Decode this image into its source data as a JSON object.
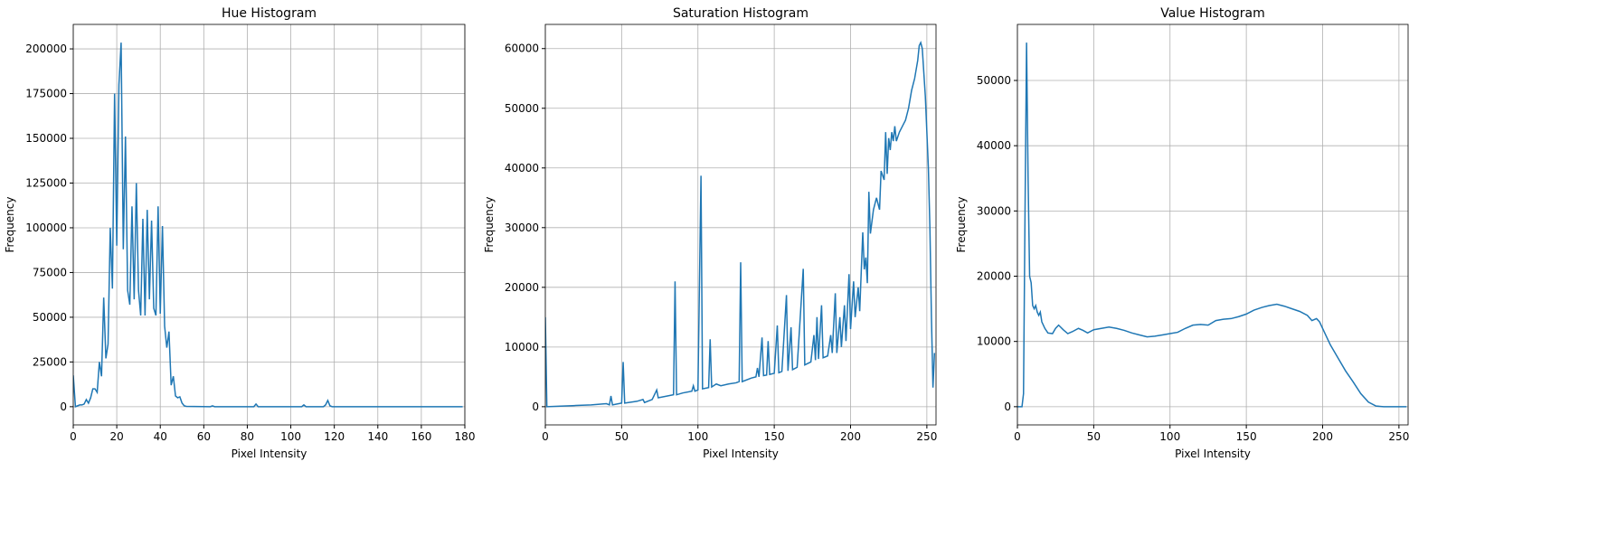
{
  "chart_data": [
    {
      "type": "line",
      "title": "Hue Histogram",
      "x_label": "Pixel Intensity",
      "y_label": "Frequency",
      "color": "#1f77b4",
      "grid": true,
      "xlim": [
        0,
        180
      ],
      "xticks": [
        0,
        20,
        40,
        60,
        80,
        100,
        120,
        140,
        160,
        180
      ],
      "ylim": [
        -10175,
        213675
      ],
      "yticks": [
        0,
        25000,
        50000,
        75000,
        100000,
        125000,
        150000,
        175000,
        200000
      ],
      "x": [
        0,
        1,
        2,
        3,
        4,
        5,
        6,
        7,
        8,
        9,
        10,
        11,
        12,
        13,
        14,
        15,
        16,
        17,
        18,
        19,
        20,
        21,
        22,
        23,
        24,
        25,
        26,
        27,
        28,
        29,
        30,
        31,
        32,
        33,
        34,
        35,
        36,
        37,
        38,
        39,
        40,
        41,
        42,
        43,
        44,
        45,
        46,
        47,
        48,
        49,
        50,
        51,
        52,
        63,
        64,
        65,
        83,
        84,
        85,
        105,
        106,
        107,
        115,
        116,
        117,
        118,
        119,
        179
      ],
      "values": [
        17500,
        0,
        500,
        1000,
        1000,
        1500,
        4000,
        2000,
        5000,
        10000,
        10000,
        8000,
        25000,
        17000,
        61000,
        27000,
        35000,
        100000,
        66000,
        175000,
        90000,
        180000,
        203500,
        88000,
        151000,
        65000,
        57000,
        112000,
        60000,
        125000,
        65000,
        51000,
        105000,
        51000,
        110000,
        60000,
        104000,
        55000,
        51000,
        112000,
        52000,
        101000,
        45000,
        33000,
        42000,
        12000,
        17000,
        6000,
        5000,
        5500,
        2000,
        500,
        200,
        0,
        500,
        0,
        0,
        1500,
        0,
        0,
        1000,
        0,
        0,
        1000,
        3500,
        500,
        0,
        0
      ]
    },
    {
      "type": "line",
      "title": "Saturation Histogram",
      "x_label": "Pixel Intensity",
      "y_label": "Frequency",
      "color": "#1f77b4",
      "grid": true,
      "xlim": [
        0,
        256
      ],
      "xticks": [
        0,
        50,
        100,
        150,
        200,
        250
      ],
      "ylim": [
        -3050,
        64050
      ],
      "yticks": [
        0,
        10000,
        20000,
        30000,
        40000,
        50000,
        60000
      ],
      "x": [
        0,
        1,
        10,
        20,
        30,
        40,
        42,
        43,
        44,
        50,
        51,
        52,
        60,
        64,
        65,
        70,
        73,
        74,
        80,
        84,
        85,
        86,
        90,
        96,
        97,
        98,
        100,
        102,
        103,
        107,
        108,
        109,
        112,
        115,
        120,
        125,
        127,
        128,
        129,
        135,
        138,
        139,
        140,
        142,
        143,
        145,
        146,
        147,
        150,
        152,
        153,
        155,
        158,
        159,
        161,
        162,
        165,
        169,
        170,
        174,
        176,
        177,
        178,
        179,
        181,
        182,
        185,
        187,
        188,
        190,
        191,
        193,
        194,
        196,
        197,
        199,
        200,
        202,
        203,
        205,
        206,
        208,
        209,
        210,
        211,
        212,
        213,
        215,
        217,
        219,
        220,
        222,
        223,
        224,
        225,
        226,
        227,
        228,
        229,
        230,
        232,
        234,
        236,
        238,
        240,
        242,
        244,
        245,
        246,
        247,
        249,
        251,
        252,
        253,
        254,
        255
      ],
      "values": [
        15000,
        0,
        100,
        200,
        300,
        500,
        300,
        1800,
        300,
        600,
        7500,
        600,
        900,
        1200,
        700,
        1200,
        2800,
        1500,
        1800,
        2000,
        21000,
        2000,
        2300,
        2600,
        3500,
        2600,
        2800,
        38700,
        3000,
        3200,
        11300,
        3300,
        3800,
        3500,
        3800,
        4000,
        4200,
        24200,
        4200,
        4800,
        5000,
        6500,
        5000,
        11600,
        5200,
        5300,
        11000,
        5400,
        5600,
        13600,
        5700,
        5900,
        18700,
        6000,
        13300,
        6200,
        6600,
        23100,
        7000,
        7500,
        12000,
        7800,
        15000,
        8000,
        17000,
        8200,
        8500,
        12000,
        9000,
        19000,
        9000,
        15000,
        10000,
        17000,
        11000,
        22200,
        13000,
        21000,
        15000,
        20000,
        16000,
        29200,
        23000,
        25000,
        20700,
        36000,
        29000,
        33000,
        35000,
        33000,
        39500,
        38000,
        46000,
        39000,
        45000,
        43000,
        46000,
        44500,
        47000,
        44500,
        46000,
        47000,
        48000,
        50000,
        53000,
        55000,
        58000,
        60500,
        61000,
        60000,
        52000,
        40000,
        30000,
        15000,
        3200,
        9000
      ]
    },
    {
      "type": "line",
      "title": "Value Histogram",
      "x_label": "Pixel Intensity",
      "y_label": "Frequency",
      "color": "#1f77b4",
      "grid": true,
      "xlim": [
        0,
        256
      ],
      "xticks": [
        0,
        50,
        100,
        150,
        200,
        250
      ],
      "ylim": [
        -2790,
        58590
      ],
      "yticks": [
        0,
        10000,
        20000,
        30000,
        40000,
        50000
      ],
      "x": [
        0,
        3,
        4,
        5,
        6,
        7,
        8,
        9,
        10,
        11,
        12,
        13,
        14,
        15,
        16,
        18,
        20,
        23,
        25,
        27,
        30,
        33,
        36,
        40,
        43,
        46,
        50,
        55,
        60,
        65,
        70,
        75,
        80,
        85,
        90,
        95,
        100,
        105,
        110,
        115,
        120,
        125,
        130,
        135,
        140,
        145,
        150,
        155,
        160,
        165,
        170,
        175,
        180,
        185,
        190,
        193,
        196,
        198,
        200,
        205,
        210,
        215,
        220,
        225,
        230,
        235,
        240,
        255
      ],
      "values": [
        0,
        0,
        2000,
        30000,
        55800,
        35000,
        20000,
        19000,
        15500,
        15000,
        15500,
        14500,
        14000,
        14500,
        13000,
        12000,
        11300,
        11200,
        12000,
        12500,
        11800,
        11200,
        11500,
        12000,
        11700,
        11300,
        11800,
        12000,
        12200,
        12000,
        11700,
        11300,
        11000,
        10700,
        10800,
        11000,
        11200,
        11400,
        12000,
        12500,
        12600,
        12500,
        13200,
        13400,
        13500,
        13800,
        14200,
        14800,
        15200,
        15500,
        15700,
        15400,
        15000,
        14600,
        14000,
        13200,
        13500,
        13000,
        12000,
        9500,
        7500,
        5500,
        3800,
        2000,
        700,
        100,
        0,
        0
      ]
    }
  ]
}
